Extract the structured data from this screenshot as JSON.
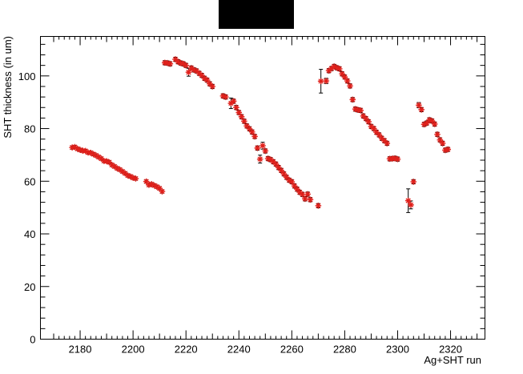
{
  "title": "",
  "colors": {
    "marker": "#e0201b",
    "error_bar": "#000000",
    "frame": "#000000",
    "title_box": "#000000"
  },
  "chart_data": {
    "type": "scatter",
    "xlabel": "Ag+SHT run",
    "ylabel": "SHT thickness (in um)",
    "xlim": [
      2165,
      2333
    ],
    "ylim": [
      0,
      115
    ],
    "x_ticks": [
      2180,
      2200,
      2220,
      2240,
      2260,
      2280,
      2300,
      2320
    ],
    "y_ticks": [
      0,
      20,
      40,
      60,
      80,
      100
    ],
    "marker": "star",
    "grid": false,
    "legend": "none",
    "points": [
      {
        "x": 2177,
        "y": 72.8,
        "err": 0.6
      },
      {
        "x": 2178,
        "y": 73.0,
        "err": 0.6
      },
      {
        "x": 2179,
        "y": 72.3,
        "err": 0.6
      },
      {
        "x": 2180,
        "y": 71.9,
        "err": 0.6
      },
      {
        "x": 2181,
        "y": 71.6,
        "err": 0.6
      },
      {
        "x": 2182,
        "y": 71.5,
        "err": 0.6
      },
      {
        "x": 2183,
        "y": 70.9,
        "err": 0.6
      },
      {
        "x": 2184,
        "y": 70.8,
        "err": 0.6
      },
      {
        "x": 2185,
        "y": 70.3,
        "err": 0.6
      },
      {
        "x": 2186,
        "y": 69.8,
        "err": 0.6
      },
      {
        "x": 2187,
        "y": 69.2,
        "err": 0.6
      },
      {
        "x": 2188,
        "y": 68.6,
        "err": 0.6
      },
      {
        "x": 2189,
        "y": 67.7,
        "err": 0.6
      },
      {
        "x": 2190,
        "y": 67.6,
        "err": 0.6
      },
      {
        "x": 2191,
        "y": 67.2,
        "err": 0.6
      },
      {
        "x": 2192,
        "y": 66.2,
        "err": 0.6
      },
      {
        "x": 2193,
        "y": 65.6,
        "err": 0.6
      },
      {
        "x": 2194,
        "y": 64.9,
        "err": 0.6
      },
      {
        "x": 2195,
        "y": 64.4,
        "err": 0.6
      },
      {
        "x": 2196,
        "y": 63.7,
        "err": 0.6
      },
      {
        "x": 2197,
        "y": 63.0,
        "err": 0.6
      },
      {
        "x": 2198,
        "y": 62.2,
        "err": 0.6
      },
      {
        "x": 2199,
        "y": 61.8,
        "err": 0.6
      },
      {
        "x": 2200,
        "y": 61.3,
        "err": 0.6
      },
      {
        "x": 2201,
        "y": 61.0,
        "err": 0.6
      },
      {
        "x": 2205,
        "y": 59.9,
        "err": 0.6
      },
      {
        "x": 2206,
        "y": 58.6,
        "err": 0.6
      },
      {
        "x": 2207,
        "y": 58.9,
        "err": 0.6
      },
      {
        "x": 2208,
        "y": 58.4,
        "err": 0.6
      },
      {
        "x": 2209,
        "y": 57.9,
        "err": 0.6
      },
      {
        "x": 2210,
        "y": 57.3,
        "err": 0.6
      },
      {
        "x": 2211,
        "y": 56.1,
        "err": 0.6
      },
      {
        "x": 2212,
        "y": 105.0,
        "err": 0.8
      },
      {
        "x": 2213,
        "y": 104.9,
        "err": 0.8
      },
      {
        "x": 2214,
        "y": 104.6,
        "err": 0.8
      },
      {
        "x": 2216,
        "y": 106.3,
        "err": 0.8
      },
      {
        "x": 2217,
        "y": 105.4,
        "err": 0.8
      },
      {
        "x": 2218,
        "y": 104.9,
        "err": 0.8
      },
      {
        "x": 2219,
        "y": 104.6,
        "err": 0.8
      },
      {
        "x": 2220,
        "y": 104.0,
        "err": 0.8
      },
      {
        "x": 2221,
        "y": 101.4,
        "err": 1.5
      },
      {
        "x": 2222,
        "y": 103.0,
        "err": 0.8
      },
      {
        "x": 2223,
        "y": 102.3,
        "err": 0.8
      },
      {
        "x": 2224,
        "y": 101.9,
        "err": 0.8
      },
      {
        "x": 2225,
        "y": 101.0,
        "err": 0.8
      },
      {
        "x": 2226,
        "y": 100.2,
        "err": 0.8
      },
      {
        "x": 2227,
        "y": 99.1,
        "err": 0.8
      },
      {
        "x": 2228,
        "y": 98.4,
        "err": 0.8
      },
      {
        "x": 2229,
        "y": 97.0,
        "err": 0.8
      },
      {
        "x": 2230,
        "y": 96.0,
        "err": 0.8
      },
      {
        "x": 2234,
        "y": 92.4,
        "err": 0.8
      },
      {
        "x": 2235,
        "y": 92.0,
        "err": 0.8
      },
      {
        "x": 2237,
        "y": 89.6,
        "err": 2.0
      },
      {
        "x": 2238,
        "y": 90.4,
        "err": 0.8
      },
      {
        "x": 2239,
        "y": 88.0,
        "err": 0.8
      },
      {
        "x": 2240,
        "y": 86.1,
        "err": 0.8
      },
      {
        "x": 2241,
        "y": 84.5,
        "err": 0.8
      },
      {
        "x": 2242,
        "y": 82.8,
        "err": 0.8
      },
      {
        "x": 2243,
        "y": 81.0,
        "err": 0.8
      },
      {
        "x": 2244,
        "y": 79.9,
        "err": 0.8
      },
      {
        "x": 2245,
        "y": 78.7,
        "err": 0.8
      },
      {
        "x": 2246,
        "y": 77.0,
        "err": 0.8
      },
      {
        "x": 2247,
        "y": 72.6,
        "err": 0.8
      },
      {
        "x": 2248,
        "y": 68.4,
        "err": 1.5
      },
      {
        "x": 2249,
        "y": 73.5,
        "err": 1.3
      },
      {
        "x": 2250,
        "y": 71.5,
        "err": 0.8
      },
      {
        "x": 2251,
        "y": 68.6,
        "err": 0.8
      },
      {
        "x": 2252,
        "y": 68.2,
        "err": 0.8
      },
      {
        "x": 2253,
        "y": 67.4,
        "err": 0.8
      },
      {
        "x": 2254,
        "y": 66.5,
        "err": 0.8
      },
      {
        "x": 2255,
        "y": 65.2,
        "err": 0.8
      },
      {
        "x": 2256,
        "y": 64.1,
        "err": 0.8
      },
      {
        "x": 2257,
        "y": 62.8,
        "err": 0.8
      },
      {
        "x": 2258,
        "y": 61.5,
        "err": 0.8
      },
      {
        "x": 2259,
        "y": 60.4,
        "err": 0.8
      },
      {
        "x": 2260,
        "y": 59.8,
        "err": 0.8
      },
      {
        "x": 2261,
        "y": 58.2,
        "err": 0.8
      },
      {
        "x": 2262,
        "y": 57.0,
        "err": 0.8
      },
      {
        "x": 2263,
        "y": 55.8,
        "err": 0.8
      },
      {
        "x": 2264,
        "y": 55.0,
        "err": 0.8
      },
      {
        "x": 2265,
        "y": 53.3,
        "err": 0.8
      },
      {
        "x": 2266,
        "y": 55.1,
        "err": 0.8
      },
      {
        "x": 2267,
        "y": 53.0,
        "err": 0.8
      },
      {
        "x": 2270,
        "y": 50.7,
        "err": 0.8
      },
      {
        "x": 2271,
        "y": 98.0,
        "err": 4.5
      },
      {
        "x": 2273,
        "y": 98.1,
        "err": 1.0
      },
      {
        "x": 2274,
        "y": 102.0,
        "err": 0.8
      },
      {
        "x": 2275,
        "y": 102.8,
        "err": 0.8
      },
      {
        "x": 2276,
        "y": 103.6,
        "err": 0.8
      },
      {
        "x": 2277,
        "y": 103.1,
        "err": 0.8
      },
      {
        "x": 2278,
        "y": 102.7,
        "err": 0.8
      },
      {
        "x": 2279,
        "y": 100.8,
        "err": 0.8
      },
      {
        "x": 2280,
        "y": 99.6,
        "err": 0.8
      },
      {
        "x": 2281,
        "y": 98.1,
        "err": 0.8
      },
      {
        "x": 2282,
        "y": 96.2,
        "err": 0.8
      },
      {
        "x": 2283,
        "y": 91.0,
        "err": 0.8
      },
      {
        "x": 2284,
        "y": 87.4,
        "err": 0.8
      },
      {
        "x": 2285,
        "y": 87.1,
        "err": 0.8
      },
      {
        "x": 2286,
        "y": 86.9,
        "err": 0.8
      },
      {
        "x": 2287,
        "y": 84.8,
        "err": 0.8
      },
      {
        "x": 2288,
        "y": 83.8,
        "err": 0.8
      },
      {
        "x": 2289,
        "y": 82.6,
        "err": 0.8
      },
      {
        "x": 2290,
        "y": 80.8,
        "err": 0.8
      },
      {
        "x": 2291,
        "y": 80.0,
        "err": 0.8
      },
      {
        "x": 2292,
        "y": 78.6,
        "err": 0.8
      },
      {
        "x": 2293,
        "y": 77.6,
        "err": 0.8
      },
      {
        "x": 2294,
        "y": 76.3,
        "err": 0.8
      },
      {
        "x": 2295,
        "y": 75.4,
        "err": 0.8
      },
      {
        "x": 2296,
        "y": 74.4,
        "err": 0.8
      },
      {
        "x": 2297,
        "y": 68.5,
        "err": 0.8
      },
      {
        "x": 2298,
        "y": 68.6,
        "err": 0.8
      },
      {
        "x": 2299,
        "y": 68.7,
        "err": 0.8
      },
      {
        "x": 2300,
        "y": 68.4,
        "err": 0.8
      },
      {
        "x": 2304,
        "y": 52.6,
        "err": 4.5
      },
      {
        "x": 2305,
        "y": 51.0,
        "err": 1.5
      },
      {
        "x": 2306,
        "y": 59.8,
        "err": 0.8
      },
      {
        "x": 2308,
        "y": 88.9,
        "err": 1.0
      },
      {
        "x": 2309,
        "y": 87.2,
        "err": 0.8
      },
      {
        "x": 2310,
        "y": 81.6,
        "err": 0.8
      },
      {
        "x": 2311,
        "y": 82.1,
        "err": 0.8
      },
      {
        "x": 2312,
        "y": 83.3,
        "err": 0.8
      },
      {
        "x": 2313,
        "y": 82.9,
        "err": 0.8
      },
      {
        "x": 2314,
        "y": 81.7,
        "err": 0.8
      },
      {
        "x": 2315,
        "y": 77.8,
        "err": 0.8
      },
      {
        "x": 2316,
        "y": 75.7,
        "err": 0.8
      },
      {
        "x": 2317,
        "y": 74.4,
        "err": 0.8
      },
      {
        "x": 2318,
        "y": 71.8,
        "err": 0.8
      },
      {
        "x": 2319,
        "y": 72.1,
        "err": 0.8
      }
    ]
  }
}
